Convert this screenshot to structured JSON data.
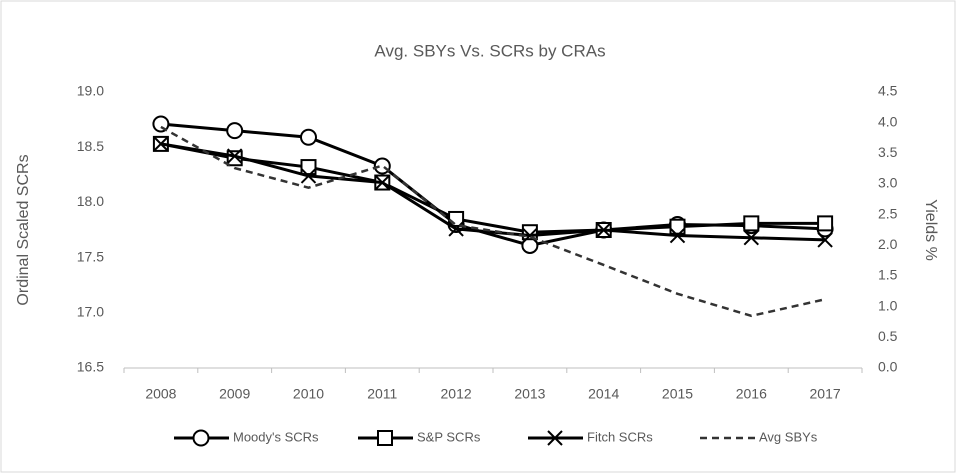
{
  "chart_data": {
    "type": "line",
    "title": "Avg. SBYs Vs. SCRs by CRAs",
    "y_label": "Ordinal Scaled SCRs",
    "y2_label": "Yields %",
    "categories": [
      "2008",
      "2009",
      "2010",
      "2011",
      "2012",
      "2013",
      "2014",
      "2015",
      "2016",
      "2017"
    ],
    "series": [
      {
        "name": "Moody's SCRs",
        "color": "#000000",
        "marker": "circle",
        "dashed": false,
        "values": [
          18.71,
          18.65,
          18.59,
          18.33,
          17.8,
          17.61,
          17.75,
          17.8,
          17.79,
          17.76
        ]
      },
      {
        "name": "S&P SCRs",
        "color": "#000000",
        "marker": "square",
        "dashed": false,
        "values": [
          18.53,
          18.4,
          18.32,
          18.18,
          17.85,
          17.73,
          17.75,
          17.78,
          17.81,
          17.81
        ]
      },
      {
        "name": "Fitch SCRs",
        "color": "#000000",
        "marker": "x",
        "dashed": false,
        "values": [
          18.53,
          18.42,
          18.24,
          18.18,
          17.76,
          17.7,
          17.75,
          17.7,
          17.68,
          17.66
        ]
      },
      {
        "name": "Avg SBYs",
        "color": "#333333",
        "marker": "none",
        "dashed": true,
        "axis": "y2",
        "values": [
          3.93,
          3.26,
          2.94,
          3.3,
          2.33,
          2.14,
          1.68,
          1.21,
          0.85,
          1.12
        ]
      }
    ],
    "ylim": [
      16.5,
      19.0
    ],
    "yticks": [
      {
        "value": 16.5,
        "label": "16.5"
      },
      {
        "value": 17,
        "label": "17.0"
      },
      {
        "value": 17.5,
        "label": "17.5"
      },
      {
        "value": 18,
        "label": "18.0"
      },
      {
        "value": 18.5,
        "label": "18.5"
      },
      {
        "value": 19,
        "label": "19.0"
      }
    ],
    "y2lim": [
      0,
      4.5
    ],
    "y2ticks": [
      {
        "value": 0,
        "label": "0.0"
      },
      0.5,
      {
        "value": 1,
        "label": "1.0"
      },
      1.5,
      {
        "value": 2,
        "label": "2.0"
      },
      2.5,
      {
        "value": 3,
        "label": "3.0"
      },
      3.5,
      {
        "value": 4,
        "label": "4.0"
      },
      4.5
    ],
    "grid": false,
    "legend": "bottom"
  }
}
